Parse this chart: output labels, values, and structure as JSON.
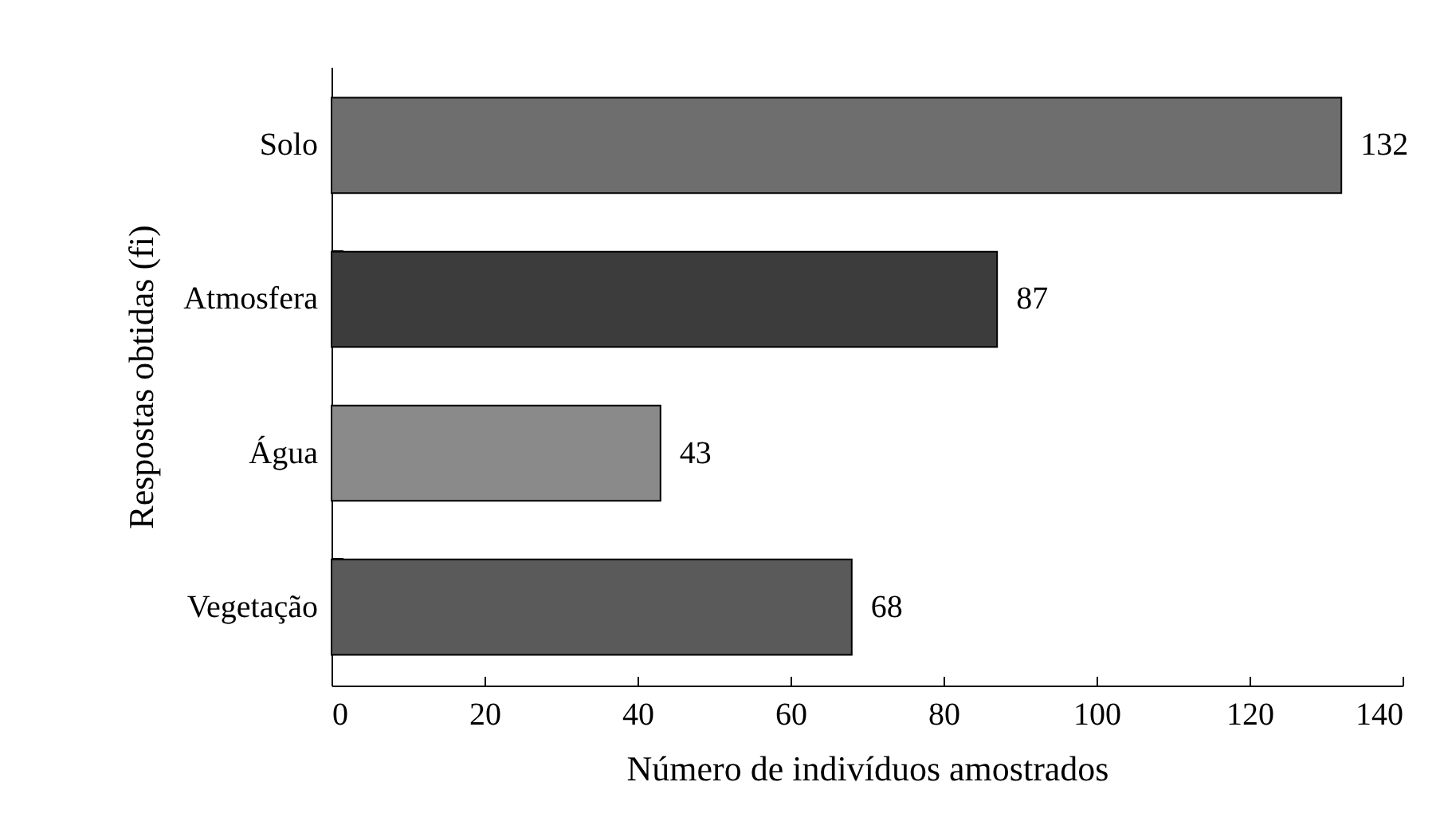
{
  "chart_data": {
    "type": "bar",
    "orientation": "horizontal",
    "categories": [
      "Solo",
      "Atmosfera",
      "Água",
      "Vegetação"
    ],
    "values": [
      132,
      87,
      43,
      68
    ],
    "colors": [
      "#6e6e6e",
      "#3c3c3c",
      "#8a8a8a",
      "#5a5a5a"
    ],
    "xlim": [
      0,
      140
    ],
    "xticks": [
      0,
      20,
      40,
      60,
      80,
      100,
      120,
      140
    ],
    "xlabel": "Número de indivíduos amostrados",
    "ylabel": "Respostas obtidas (fi)",
    "data_labels": true
  }
}
